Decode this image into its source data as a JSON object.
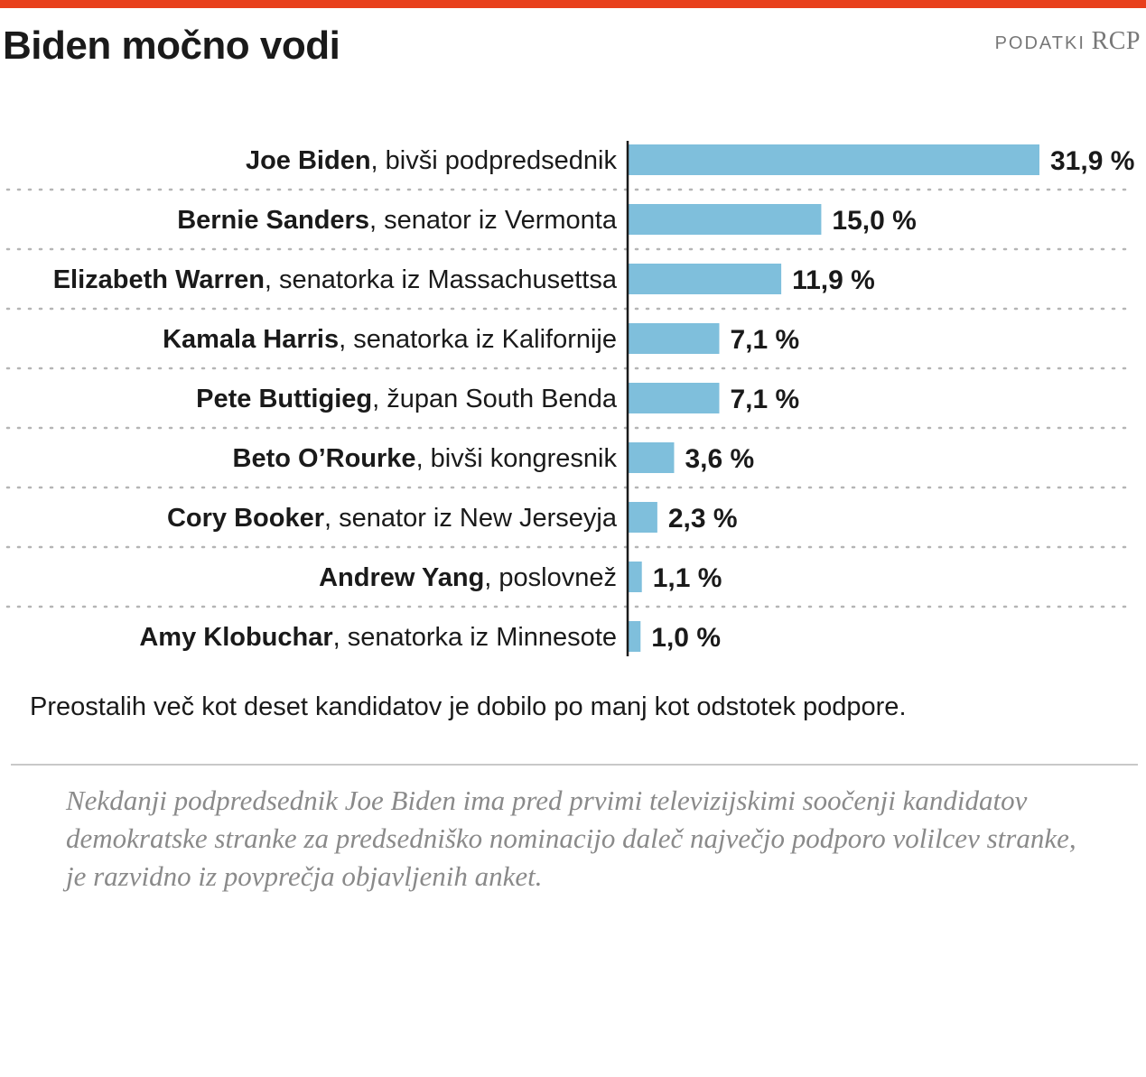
{
  "header": {
    "title": "Biden močno vodi",
    "source_label": "PODATKI",
    "source_name": "RCP"
  },
  "colors": {
    "accent_bar": "#e8401c",
    "bar": "#7fbfdc",
    "axis": "#1a1a1a",
    "dotted_rule": "#b5b5b5"
  },
  "chart_data": {
    "type": "bar",
    "orientation": "horizontal",
    "title": "Biden močno vodi",
    "xlim": [
      0,
      31.9
    ],
    "grid": false,
    "items": [
      {
        "name": "Joe Biden",
        "role": ", bivši podpredsednik",
        "value": 31.9,
        "value_label": "31,9 %"
      },
      {
        "name": "Bernie Sanders",
        "role": ", senator iz Vermonta",
        "value": 15.0,
        "value_label": "15,0 %"
      },
      {
        "name": "Elizabeth Warren",
        "role": ", senatorka iz Massachusettsa",
        "value": 11.9,
        "value_label": "11,9 %"
      },
      {
        "name": "Kamala Harris",
        "role": ", senatorka iz Kalifornije",
        "value": 7.1,
        "value_label": "7,1 %"
      },
      {
        "name": "Pete Buttigieg",
        "role": ", župan South Benda",
        "value": 7.1,
        "value_label": "7,1 %"
      },
      {
        "name": "Beto O’Rourke",
        "role": ", bivši kongresnik",
        "value": 3.6,
        "value_label": "3,6 %"
      },
      {
        "name": "Cory Booker",
        "role": ", senator iz New Jerseyja",
        "value": 2.3,
        "value_label": "2,3 %"
      },
      {
        "name": "Andrew Yang",
        "role": ", poslovnež",
        "value": 1.1,
        "value_label": "1,1 %"
      },
      {
        "name": "Amy Klobuchar",
        "role": ", senatorka iz Minnesote",
        "value": 1.0,
        "value_label": "1,0 %"
      }
    ]
  },
  "footnote": "Preostalih več kot deset kandidatov je dobilo po manj kot odstotek podpore.",
  "description": "Nekdanji podpredsednik  Joe Biden ima pred prvimi televizijskimi soočenji kandidatov demokratske stranke za predsedniško nominacijo daleč največjo podporo volilcev stranke, je razvidno iz povprečja objavljenih anket."
}
